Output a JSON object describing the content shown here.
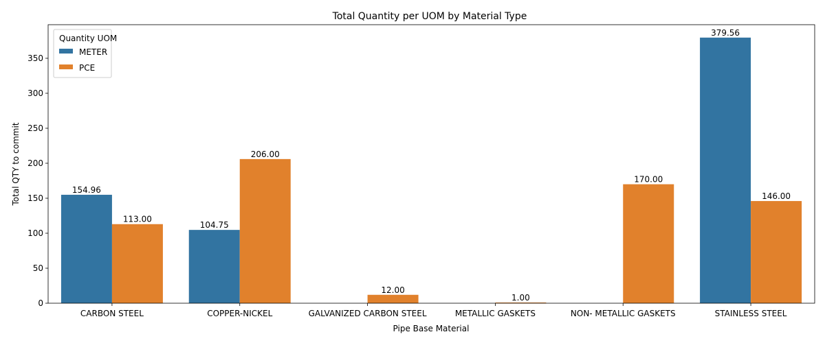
{
  "chart_data": {
    "type": "bar",
    "title": "Total Quantity per UOM by Material Type",
    "xlabel": "Pipe Base Material",
    "ylabel": "Total QTY to commit",
    "ylim": [
      0,
      398
    ],
    "yticks": [
      0,
      50,
      100,
      150,
      200,
      250,
      300,
      350
    ],
    "categories": [
      "CARBON STEEL",
      "COPPER-NICKEL",
      "GALVANIZED CARBON STEEL",
      "METALLIC GASKETS",
      "NON- METALLIC GASKETS",
      "STAINLESS STEEL"
    ],
    "legend": {
      "title": "Quantity UOM",
      "position": "top-left"
    },
    "series": [
      {
        "name": "METER",
        "color": "#3274a1",
        "values": [
          154.96,
          104.75,
          null,
          null,
          null,
          379.56
        ],
        "labels": [
          "154.96",
          "104.75",
          "",
          "",
          "",
          "379.56"
        ]
      },
      {
        "name": "PCE",
        "color": "#e1812c",
        "values": [
          113.0,
          206.0,
          12.0,
          1.0,
          170.0,
          146.0
        ],
        "labels": [
          "113.00",
          "206.00",
          "12.00",
          "1.00",
          "170.00",
          "146.00"
        ]
      }
    ]
  }
}
